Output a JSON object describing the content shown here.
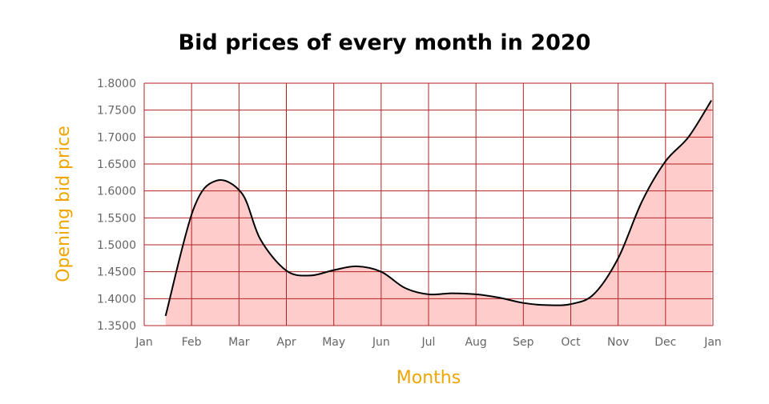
{
  "colors": {
    "grid": "#b22222",
    "fill": "#ffcccc",
    "line": "#000000",
    "axis_title": "#f0a500",
    "tick_text": "#666666"
  },
  "chart_data": {
    "type": "area",
    "title": "Bid prices of every month in 2020",
    "xlabel": "Months",
    "ylabel": "Opening bid price",
    "x_ticks": [
      "Jan",
      "Feb",
      "Mar",
      "Apr",
      "May",
      "Jun",
      "Jul",
      "Aug",
      "Sep",
      "Oct",
      "Nov",
      "Dec",
      "Jan"
    ],
    "y_ticks": [
      "1.3500",
      "1.4000",
      "1.4500",
      "1.5000",
      "1.5500",
      "1.6000",
      "1.6500",
      "1.7000",
      "1.7500",
      "1.8000"
    ],
    "ylim": [
      1.35,
      1.8
    ],
    "grid": true,
    "series": [
      {
        "x": [
          "2020-01-15",
          "2020-02-02",
          "2020-02-16",
          "2020-03-03",
          "2020-03-15",
          "2020-04-01",
          "2020-04-16",
          "2020-05-01",
          "2020-05-16",
          "2020-06-01",
          "2020-06-16",
          "2020-07-01",
          "2020-07-16",
          "2020-08-01",
          "2020-08-16",
          "2020-09-01",
          "2020-09-16",
          "2020-10-01",
          "2020-10-16",
          "2020-11-01",
          "2020-11-16",
          "2020-12-01",
          "2020-12-16",
          "2020-12-31"
        ],
        "values": [
          1.368,
          1.565,
          1.619,
          1.595,
          1.51,
          1.452,
          1.443,
          1.453,
          1.46,
          1.45,
          1.42,
          1.408,
          1.41,
          1.408,
          1.402,
          1.392,
          1.388,
          1.39,
          1.408,
          1.475,
          1.58,
          1.655,
          1.7,
          1.768
        ]
      }
    ]
  }
}
